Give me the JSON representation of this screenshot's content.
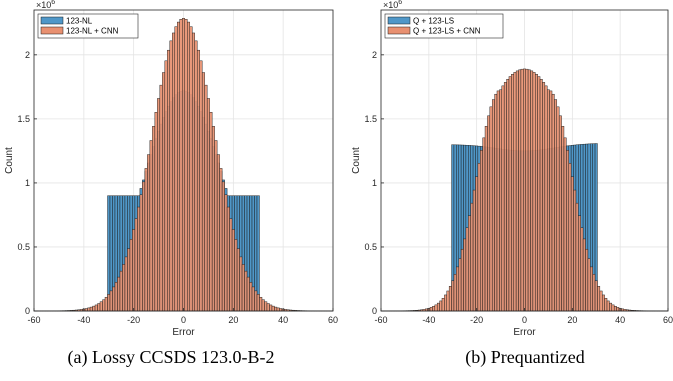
{
  "chart_data": [
    {
      "type": "bar",
      "xlabel": "Error",
      "ylabel": "Count",
      "y_multiplier": "×10",
      "y_exponent": "6",
      "xlim": [
        -60,
        60
      ],
      "ylim": [
        0,
        2.35
      ],
      "x_ticks": [
        "-60",
        "-40",
        "-20",
        "0",
        "20",
        "40",
        "60"
      ],
      "y_ticks": [
        "0",
        "0.5",
        "1",
        "1.5",
        "2"
      ],
      "grid": true,
      "legend_position": "top-left",
      "caption": "(a) Lossy CCSDS 123.0-B-2",
      "series": [
        {
          "name": "123-NL",
          "color": "#4f97c8",
          "profile": {
            "kind": "flat-gauss",
            "flat_half_width": 30,
            "flat_level": 0.9,
            "peak": 1.72,
            "sigma": 15.7,
            "tail_level": 0.005,
            "tail_decay": 10
          }
        },
        {
          "name": "123-NL + CNN",
          "color": "#e89070",
          "profile": {
            "kind": "gauss",
            "peak": 2.28,
            "sigma": 12.5,
            "tail_level": 0.005,
            "tail_decay": 10
          }
        }
      ]
    },
    {
      "type": "bar",
      "xlabel": "Error",
      "ylabel": "Count",
      "y_multiplier": "×10",
      "y_exponent": "6",
      "xlim": [
        -60,
        60
      ],
      "ylim": [
        0,
        2.35
      ],
      "x_ticks": [
        "-60",
        "-40",
        "-20",
        "0",
        "20",
        "40",
        "60"
      ],
      "y_ticks": [
        "0",
        "0.5",
        "1",
        "1.5",
        "2"
      ],
      "grid": true,
      "legend_position": "top-left",
      "caption": "(b) Prequantized",
      "series": [
        {
          "name": "Q + 123-LS",
          "color": "#4f97c8",
          "profile": {
            "kind": "uniform",
            "half_width": 30,
            "level_left": 1.3,
            "level_right": 1.31,
            "center_dip": 1.25,
            "tail_level": 0.005,
            "tail_decay": 10
          }
        },
        {
          "name": "Q + 123-LS + CNN",
          "color": "#e89070",
          "profile": {
            "kind": "flat-top",
            "peak": 1.88,
            "plateau_half_width": 10,
            "sigma": 10,
            "tail_level": 0.01,
            "tail_decay": 12
          }
        }
      ]
    }
  ]
}
